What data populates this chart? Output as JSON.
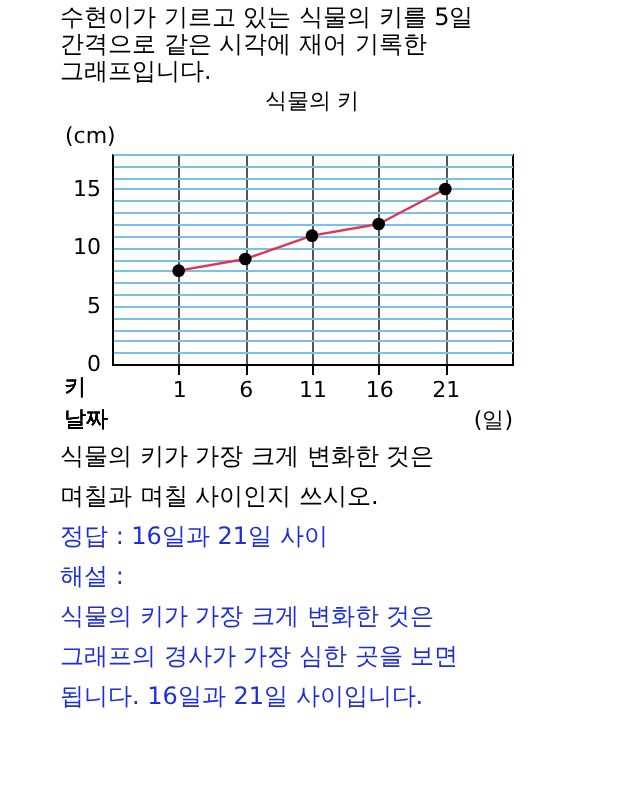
{
  "chart_data": {
    "type": "line",
    "title": "식물의 키",
    "subtitle": "수현이가 기르고 있는 식물의 키를 5일 간격으로 같은 시각에 재어 기록한 그래프입니다.",
    "ylabel": "(cm)",
    "xlabel": "(일)",
    "annotations": [
      "키",
      "날짜",
      "식물의 키가 가장 크게 변화한 것은 며칠과 며칠 사이인지 쓰시오.",
      "정답 : 16일과 21일 사이",
      "해설 :",
      "식물의 키가 가장 크게 변화한 것은 그래프의 경사가 가장 심한 곳을 보면 됩니다. 16일과 21일 사이입니다."
    ],
    "x": [
      1,
      6,
      11,
      16,
      21
    ],
    "series": [
      {
        "color": "#e0335a",
        "values": [
          8,
          9,
          11,
          12,
          15
        ]
      }
    ],
    "xlim": [
      -4,
      26
    ],
    "xticks": [
      1,
      6,
      11,
      16,
      21
    ],
    "ylim": [
      0,
      18
    ],
    "yticks": [
      0,
      {
        "value": 1,
        "label": null
      },
      {
        "value": 2,
        "label": null
      },
      {
        "value": 3,
        "label": null
      },
      {
        "value": 4,
        "label": null
      },
      5,
      {
        "value": 6,
        "label": null
      },
      {
        "value": 7,
        "label": null
      },
      {
        "value": 8,
        "label": null
      },
      {
        "value": 9,
        "label": null
      },
      10,
      {
        "value": 11,
        "label": null
      },
      {
        "value": 12,
        "label": null
      },
      {
        "value": 13,
        "label": null
      },
      {
        "value": 14,
        "label": null
      },
      15,
      {
        "value": 16,
        "label": null
      },
      {
        "value": 17,
        "label": null
      },
      {
        "value": 18,
        "label": null
      }
    ],
    "grid": true,
    "marker": "circle",
    "line_style": "solid"
  }
}
